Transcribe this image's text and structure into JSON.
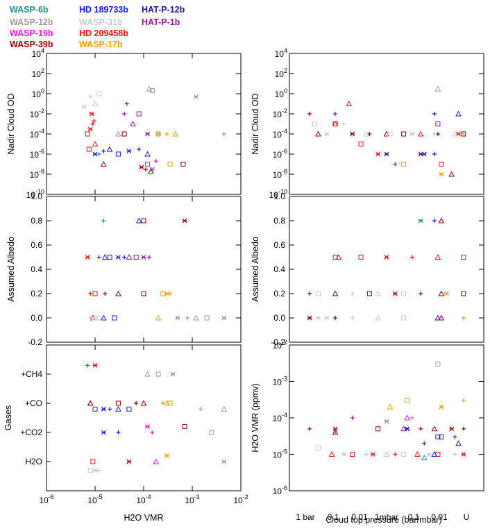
{
  "legend": [
    {
      "name": "WASP-6b",
      "color": "#1f8f8f"
    },
    {
      "name": "HD 189733b",
      "color": "#1a1ad6"
    },
    {
      "name": "HAT-P-12b",
      "color": "#1a1a8f"
    },
    {
      "name": "WASP-12b",
      "color": "#9a9a9a"
    },
    {
      "name": "WASP-31b",
      "color": "#c8c8c8"
    },
    {
      "name": "HAT-P-1b",
      "color": "#8f1a8f"
    },
    {
      "name": "WASP-19b",
      "color": "#e01ae0"
    },
    {
      "name": "HD 209458b",
      "color": "#ee1111"
    },
    {
      "name": "WASP-39b",
      "color": "#8b0000"
    },
    {
      "name": "WASP-17b",
      "color": "#f0a000"
    }
  ],
  "chart_data": [
    {
      "id": "cloud-od-vs-vmr",
      "type": "scatter",
      "xscale": "log",
      "yscale": "log",
      "xlim": [
        1e-06,
        0.01
      ],
      "ylim": [
        1e-10,
        10000.0
      ],
      "xticks": [
        "10^-6",
        "10^-5",
        "10^-4",
        "10^-3",
        "10^-2"
      ],
      "yticks": [
        "10^-10",
        "10^-8",
        "10^-6",
        "10^-4",
        "10^-2",
        "10^0",
        "10^2",
        "10^4"
      ],
      "xlabel": "",
      "ylabel": "Nadir Cloud OD",
      "series": [
        {
          "name": "WASP-31b",
          "x": [
            8e-06,
            1e-05,
            1.2e-05,
            6e-06,
            9e-06
          ],
          "y": [
            0.5,
            0.1,
            1,
            0.05,
            0.01
          ]
        },
        {
          "name": "WASP-12b",
          "x": [
            0.00013,
            0.00015,
            0.0012,
            0.0045,
            3e-05,
            0.0002
          ],
          "y": [
            3,
            2,
            0.5,
            0.0001,
            0.0001,
            0.0001
          ]
        },
        {
          "name": "HD 209458b",
          "x": [
            7e-06,
            8e-06,
            9e-06,
            1e-05,
            7.5e-06,
            8.5e-06,
            9.5e-06
          ],
          "y": [
            0.0001,
            0.0003,
            0.001,
            1e-05,
            3e-06,
            0.01,
            0.002
          ]
        },
        {
          "name": "HD 189733b",
          "x": [
            1e-05,
            1.5e-05,
            2e-05,
            3e-05,
            5e-05,
            8e-05,
            0.00012
          ],
          "y": [
            1e-06,
            2e-06,
            3e-06,
            1e-06,
            2e-06,
            3e-06,
            1e-06
          ]
        },
        {
          "name": "HAT-P-1b",
          "x": [
            4e-05,
            6e-05,
            8e-05,
            0.00012,
            4.5e-05
          ],
          "y": [
            0.01,
            0.001,
            0.01,
            0.0001,
            0.1
          ]
        },
        {
          "name": "WASP-39b",
          "x": [
            1.5e-05,
            4e-05,
            9e-05,
            0.00011,
            0.00014,
            0.00065
          ],
          "y": [
            1e-07,
            0.0001,
            5e-08,
            3e-08,
            2e-08,
            1e-07
          ]
        },
        {
          "name": "WASP-19b",
          "x": [
            0.00012,
            0.00015,
            0.00018
          ],
          "y": [
            1e-07,
            3e-08,
            2e-07
          ]
        },
        {
          "name": "WASP-17b",
          "x": [
            0.0002,
            0.0003,
            0.00045,
            0.00035
          ],
          "y": [
            0.0001,
            0.0001,
            0.0001,
            1e-07
          ]
        },
        {
          "name": "WASP-6b",
          "x": [
            1.2e-05
          ],
          "y": [
            1e-06
          ]
        }
      ]
    },
    {
      "id": "cloud-od-vs-pressure",
      "type": "scatter",
      "xscale": "category",
      "yscale": "log",
      "ylim": [
        1e-10,
        10000.0
      ],
      "yticks": [
        "10^-10",
        "10^-8",
        "10^-6",
        "10^-4",
        "10^-2",
        "10^0",
        "10^2",
        "10^4"
      ],
      "ylabel": "Nadir Cloud OD",
      "series": [
        {
          "name": "WASP-39b",
          "x": [
            0.05,
            0.1,
            0.2,
            0.3,
            0.4,
            0.5,
            0.6,
            0.7,
            0.8,
            0.88,
            0.95
          ],
          "y": [
            0.01,
            0.0001,
            0.001,
            0.0001,
            0.0001,
            0.0001,
            0.0001,
            1e-06,
            0.0001,
            1e-08,
            0.0001
          ]
        },
        {
          "name": "HD 209458b",
          "x": [
            0.2,
            0.35,
            0.45,
            0.55,
            0.7,
            0.82,
            0.92
          ],
          "y": [
            0.001,
            1e-05,
            1e-06,
            1e-07,
            0.0001,
            1e-07,
            0.0001
          ]
        },
        {
          "name": "WASP-31b",
          "x": [
            0.08,
            0.15,
            0.25,
            0.38,
            0.52,
            0.65,
            0.78,
            0.9
          ],
          "y": [
            0.001,
            0.0001,
            0.001,
            0.0001,
            0.0001,
            0.0001,
            0.0001,
            0.0001
          ]
        },
        {
          "name": "HAT-P-12b",
          "x": [
            0.5,
            0.78,
            0.92
          ],
          "y": [
            1e-06,
            0.01,
            0.01
          ]
        },
        {
          "name": "HAT-P-1b",
          "x": [
            0.2,
            0.28,
            0.8
          ],
          "y": [
            0.01,
            0.1,
            0.001
          ]
        },
        {
          "name": "WASP-12b",
          "x": [
            0.8
          ],
          "y": [
            3
          ]
        },
        {
          "name": "WASP-17b",
          "x": [
            0.6,
            0.82,
            0.95
          ],
          "y": [
            1e-07,
            1e-08,
            0.0001
          ]
        },
        {
          "name": "HD 189733b",
          "x": [
            0.72,
            0.78
          ],
          "y": [
            1e-06,
            1e-06
          ]
        }
      ]
    },
    {
      "id": "albedo-vs-vmr",
      "type": "scatter",
      "xscale": "log",
      "xlim": [
        1e-06,
        0.01
      ],
      "ylim": [
        -0.2,
        1.0
      ],
      "xticks": [
        "10^-6",
        "10^-5",
        "10^-4",
        "10^-3",
        "10^-2"
      ],
      "yticks": [
        "-0.2",
        "0.0",
        "0.2",
        "0.4",
        "0.6",
        "0.8",
        "1.0"
      ],
      "ylabel": "Assumed Albedo",
      "series": [
        {
          "name": "WASP-6b",
          "x": [
            1.5e-05
          ],
          "y": [
            0.8
          ]
        },
        {
          "name": "HAT-P-12b",
          "x": [
            8e-05
          ],
          "y": [
            0.8
          ]
        },
        {
          "name": "WASP-39b",
          "x": [
            0.0001,
            0.0007,
            1.6e-05,
            3e-05,
            0.0001
          ],
          "y": [
            0.8,
            0.8,
            0.2,
            0.2,
            0.2
          ]
        },
        {
          "name": "HD 209458b",
          "x": [
            7e-06,
            8e-06,
            9e-06,
            1e-05
          ],
          "y": [
            0.5,
            0.2,
            0.0,
            0.2
          ]
        },
        {
          "name": "HD 189733b",
          "x": [
            1.2e-05,
            1.6e-05,
            2e-05,
            3e-05,
            4e-05,
            1.5e-05,
            2.5e-05
          ],
          "y": [
            0.5,
            0.5,
            0.5,
            0.5,
            0.5,
            0.0,
            0.0
          ]
        },
        {
          "name": "HAT-P-1b",
          "x": [
            5e-05,
            7e-05,
            0.0001,
            0.00013
          ],
          "y": [
            0.5,
            0.5,
            0.5,
            0.5
          ]
        },
        {
          "name": "WASP-17b",
          "x": [
            0.00025,
            0.0003,
            0.00035,
            0.0002
          ],
          "y": [
            0.2,
            0.2,
            0.2,
            0.0
          ]
        },
        {
          "name": "WASP-12b",
          "x": [
            0.0005,
            0.0008,
            0.0012,
            0.002,
            0.0045
          ],
          "y": [
            0.0,
            0.0,
            0.0,
            0.0,
            0.0
          ]
        },
        {
          "name": "WASP-31b",
          "x": [
            8e-06,
            1e-05,
            1.2e-05
          ],
          "y": [
            0.0,
            0.0,
            0.0
          ]
        }
      ]
    },
    {
      "id": "albedo-vs-pressure",
      "type": "scatter",
      "xscale": "category",
      "ylim": [
        -0.2,
        1.0
      ],
      "yticks": [
        "-0.2",
        "0.0",
        "0.2",
        "0.4",
        "0.6",
        "0.8",
        "1.0"
      ],
      "ylabel": "Assumed Albedo",
      "series": [
        {
          "name": "WASP-39b",
          "x": [
            0.05,
            0.2,
            0.4,
            0.55,
            0.7,
            0.82,
            0.95,
            0.05,
            0.2,
            0.82
          ],
          "y": [
            0.2,
            0.2,
            0.2,
            0.2,
            0.2,
            0.2,
            0.2,
            0.0,
            0.0,
            0.0
          ]
        },
        {
          "name": "HD 209458b",
          "x": [
            0.22,
            0.35,
            0.5,
            0.65,
            0.8,
            0.95
          ],
          "y": [
            0.5,
            0.5,
            0.5,
            0.5,
            0.5,
            0.5
          ]
        },
        {
          "name": "WASP-31b",
          "x": [
            0.1,
            0.15,
            0.3,
            0.45,
            0.6,
            0.1,
            0.3,
            0.45,
            0.6
          ],
          "y": [
            0.2,
            0.0,
            0.2,
            0.0,
            0.2,
            0.0,
            0.0,
            0.2,
            0.0
          ]
        },
        {
          "name": "WASP-6b",
          "x": [
            0.7
          ],
          "y": [
            0.8
          ]
        },
        {
          "name": "HD 189733b",
          "x": [
            0.78,
            0.8
          ],
          "y": [
            0.8,
            0.0
          ]
        },
        {
          "name": "WASP-39b ",
          "x": [
            0.82
          ],
          "y": [
            0.8
          ]
        },
        {
          "name": "HAT-P-1b",
          "x": [
            0.2
          ],
          "y": [
            0.5
          ]
        },
        {
          "name": "WASP-17b",
          "x": [
            0.85,
            0.95
          ],
          "y": [
            0.2,
            0.0
          ]
        }
      ]
    },
    {
      "id": "gases-vs-vmr",
      "type": "scatter",
      "xscale": "log",
      "xlim": [
        1e-06,
        0.01
      ],
      "ylim": [
        0,
        5
      ],
      "xticks": [
        "10^-6",
        "10^-5",
        "10^-4",
        "10^-3",
        "10^-2"
      ],
      "yticks": [
        "H2O",
        "+CO2",
        "+CO",
        "+CH4"
      ],
      "xlabel": "H2O VMR",
      "ylabel": "Gases",
      "series": [
        {
          "name": "HD 209458b",
          "x": [
            7e-06,
            8e-06,
            9e-06,
            1e-05
          ],
          "y": [
            4.3,
            3.0,
            1.0,
            4.3
          ]
        },
        {
          "name": "WASP-39b",
          "x": [
            8e-06,
            3e-05,
            5e-05,
            7e-05,
            0.0001,
            0.0007
          ],
          "y": [
            3.0,
            3.0,
            1.0,
            3.0,
            3.0,
            2.2
          ]
        },
        {
          "name": "HD 189733b",
          "x": [
            1e-05,
            1.5e-05,
            2e-05,
            3e-05,
            5e-05,
            1.5e-05,
            3e-05
          ],
          "y": [
            2.8,
            2.8,
            2.8,
            2.8,
            2.8,
            2.0,
            2.0
          ]
        },
        {
          "name": "WASP-19b",
          "x": [
            0.00012,
            0.00015,
            0.00018
          ],
          "y": [
            2.2,
            2.0,
            1.0
          ]
        },
        {
          "name": "WASP-17b",
          "x": [
            0.00025,
            0.0003,
            0.00035,
            0.0003
          ],
          "y": [
            3.0,
            3.0,
            3.0,
            1.2
          ]
        },
        {
          "name": "WASP-12b",
          "x": [
            0.00012,
            0.0002,
            0.0004,
            0.0015,
            0.0045,
            0.0025,
            0.0045
          ],
          "y": [
            4.0,
            4.0,
            4.0,
            2.8,
            2.8,
            2.0,
            1.0
          ]
        },
        {
          "name": "WASP-31b",
          "x": [
            8e-06,
            1e-05,
            1.2e-05
          ],
          "y": [
            0.7,
            0.7,
            0.7
          ]
        }
      ]
    },
    {
      "id": "vmr-vs-pressure",
      "type": "scatter",
      "xscale": "category",
      "yscale": "log",
      "ylim": [
        1e-06,
        0.01
      ],
      "xticks": [
        "1 bar",
        "0.1",
        "0.01",
        "1mbar",
        "0.1",
        "0.01",
        "U"
      ],
      "yticks": [
        "10^-6",
        "10^-5",
        "10^-4",
        "10^-3",
        "10^-2"
      ],
      "xlabel": "Cloud top pressure (bar/mbar)",
      "ylabel": "H2O VMR (ppmv)",
      "series": [
        {
          "name": "WASP-39b",
          "x": [
            0.05,
            0.2,
            0.45,
            0.62,
            0.7,
            0.78,
            0.82,
            0.88,
            0.95
          ],
          "y": [
            5e-05,
            4e-05,
            5e-05,
            5e-05,
            5e-05,
            5e-05,
            3e-05,
            5e-05,
            5e-05
          ]
        },
        {
          "name": "HD 209458b",
          "x": [
            0.18,
            0.3,
            0.42,
            0.55,
            0.68,
            0.8,
            0.95
          ],
          "y": [
            1e-05,
            1e-05,
            1e-05,
            1e-05,
            1e-05,
            1e-05,
            1e-05
          ]
        },
        {
          "name": "WASP-31b",
          "x": [
            0.1,
            0.25,
            0.38,
            0.5,
            0.6,
            0.75,
            0.9
          ],
          "y": [
            1.5e-05,
            1e-05,
            1e-05,
            1e-05,
            1e-05,
            1e-05,
            1e-05
          ]
        },
        {
          "name": "HAT-P-1b",
          "x": [
            0.2,
            0.3,
            0.6
          ],
          "y": [
            5e-05,
            0.0001,
            5e-05
          ]
        },
        {
          "name": "WASP-19b",
          "x": [
            0.2,
            0.62
          ],
          "y": [
            4e-05,
            0.0001
          ]
        },
        {
          "name": "WASP-17b",
          "x": [
            0.52,
            0.62,
            0.82,
            0.95
          ],
          "y": [
            0.0002,
            0.0003,
            0.0002,
            0.0003
          ]
        },
        {
          "name": "WASP-12b",
          "x": [
            0.8,
            0.5,
            0.65
          ],
          "y": [
            0.003,
            8e-05,
            0.0001
          ]
        },
        {
          "name": "HD 189733b",
          "x": [
            0.62,
            0.72,
            0.78,
            0.8
          ],
          "y": [
            5e-05,
            2e-05,
            1e-05,
            3e-05
          ]
        },
        {
          "name": "HAT-P-12b",
          "x": [
            0.9,
            0.92
          ],
          "y": [
            3e-05,
            2e-05
          ]
        },
        {
          "name": "WASP-6b",
          "x": [
            0.72
          ],
          "y": [
            8e-06
          ]
        }
      ]
    }
  ]
}
